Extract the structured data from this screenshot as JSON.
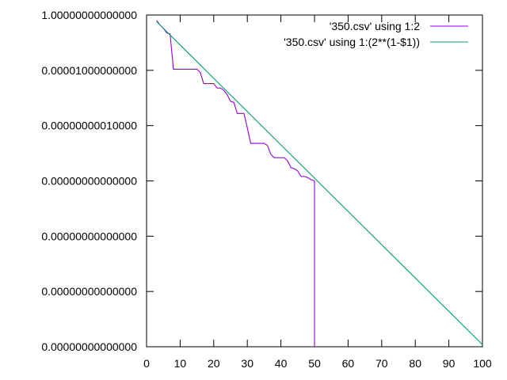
{
  "chart_data": {
    "type": "line",
    "title": "",
    "xlabel": "",
    "ylabel": "",
    "xlim": [
      0,
      100
    ],
    "ylog": true,
    "y_decades": [
      0,
      -5,
      -10,
      -15,
      -20,
      -25,
      -30
    ],
    "xticks": [
      "0",
      "10",
      "20",
      "30",
      "40",
      "50",
      "60",
      "70",
      "80",
      "90",
      "100"
    ],
    "yticks": [
      "1.00000000000000",
      "0.00001000000000",
      "0.00000000010000",
      "0.00000000000000",
      "0.00000000000000",
      "0.00000000000000",
      "0.00000000000000"
    ],
    "legend_position": "top-right",
    "grid": false,
    "series": [
      {
        "name": "'350.csv' using 1:2",
        "color": "#9400d3",
        "x": [
          3,
          4,
          5,
          6,
          7,
          8,
          9,
          10,
          11,
          12,
          13,
          14,
          15,
          16,
          17,
          18,
          19,
          20,
          21,
          22,
          23,
          24,
          25,
          26,
          27,
          28,
          29,
          30,
          31,
          32,
          33,
          34,
          35,
          36,
          37,
          38,
          39,
          40,
          41,
          42,
          43,
          44,
          45,
          46,
          47,
          48,
          49,
          50,
          50
        ],
        "y_log10": [
          -0.5,
          -0.9,
          -1.2,
          -1.6,
          -1.7,
          -4.9,
          -4.9,
          -4.9,
          -4.9,
          -4.9,
          -4.9,
          -4.9,
          -4.9,
          -5.2,
          -6.2,
          -6.2,
          -6.2,
          -6.2,
          -6.6,
          -6.6,
          -6.8,
          -7.2,
          -7.8,
          -7.9,
          -8.9,
          -8.9,
          -8.9,
          -10.2,
          -11.6,
          -11.6,
          -11.6,
          -11.6,
          -11.6,
          -11.8,
          -12.6,
          -12.9,
          -12.9,
          -12.9,
          -12.9,
          -13.2,
          -13.8,
          -13.9,
          -14.1,
          -14.6,
          -14.6,
          -14.7,
          -14.9,
          -15.0,
          -30
        ]
      },
      {
        "name": "'350.csv' using 1:(2**(1-$1))",
        "color": "#009e73",
        "x": [
          3,
          100
        ],
        "y_log10": [
          -0.602,
          -29.802
        ]
      }
    ]
  }
}
